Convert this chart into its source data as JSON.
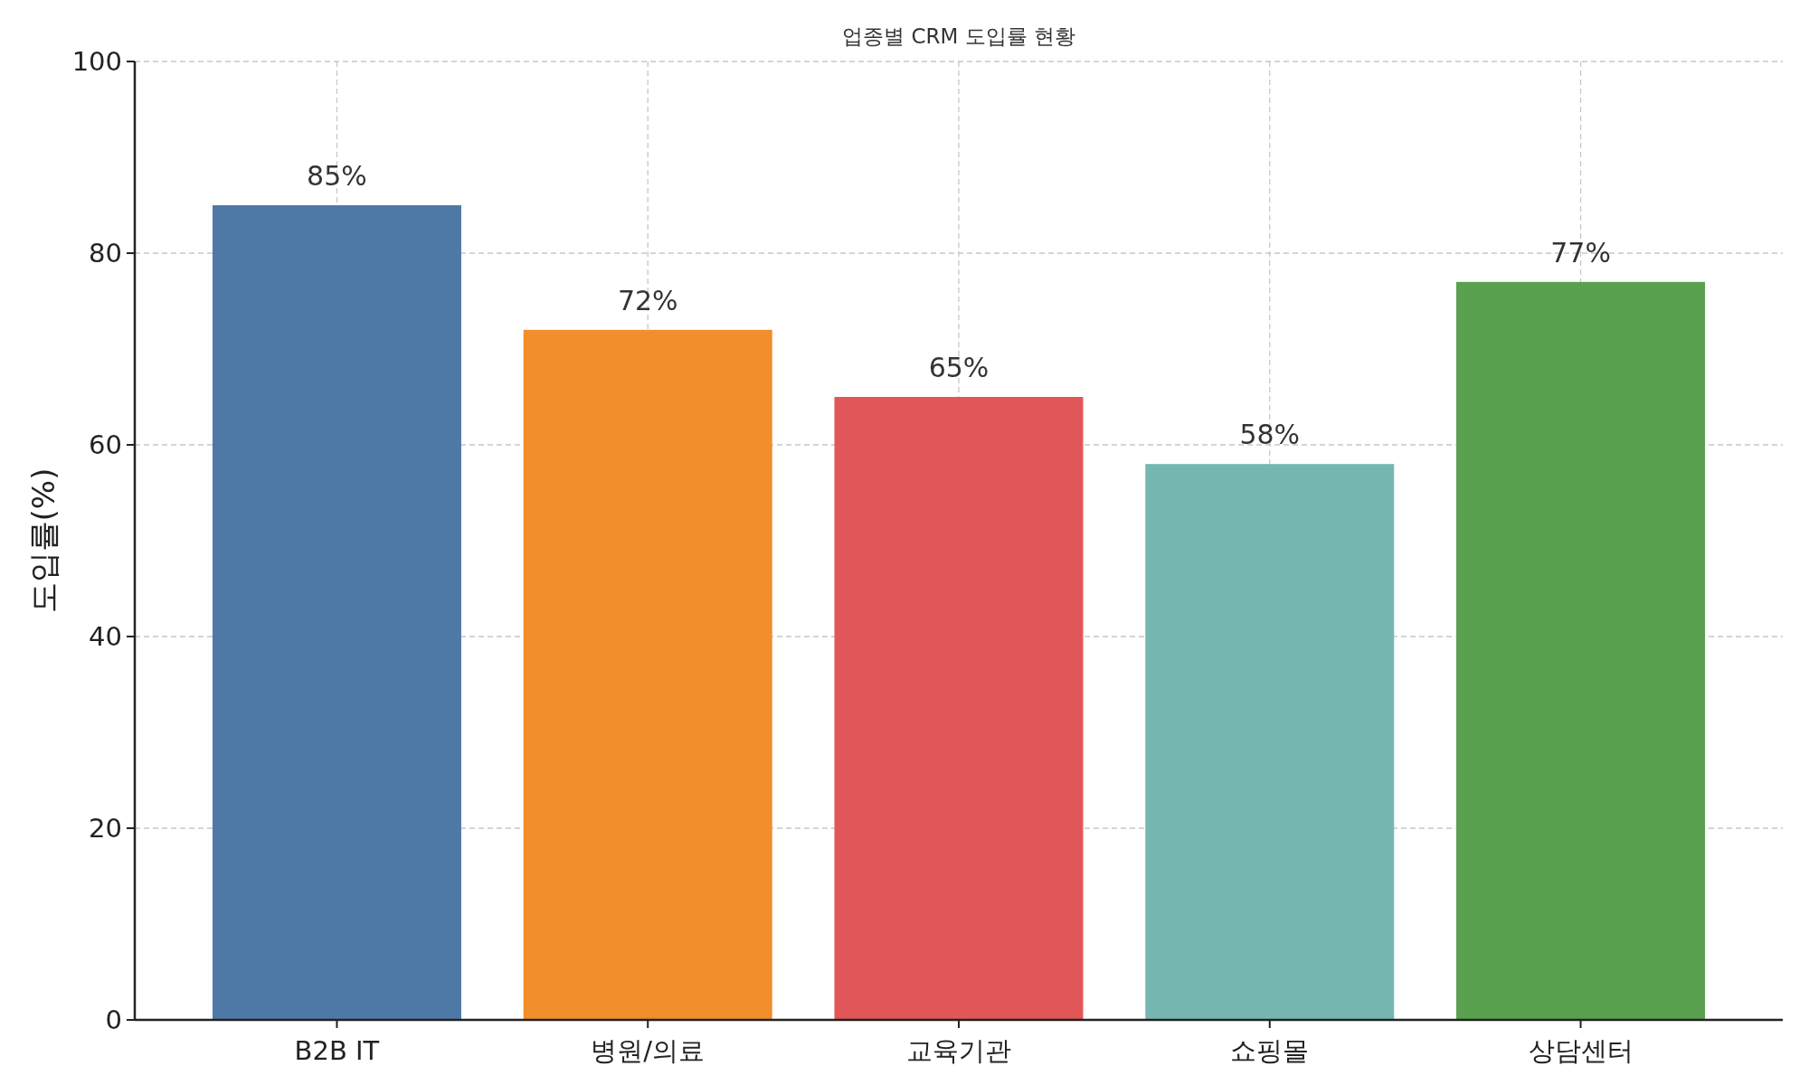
{
  "chart_data": {
    "type": "bar",
    "title": "업종별 CRM 도입률 현황",
    "ylabel": "도입률(%)",
    "categories": [
      "B2B IT",
      "병원/의료",
      "교육기관",
      "쇼핑몰",
      "상담센터"
    ],
    "values": [
      85,
      72,
      65,
      58,
      77
    ],
    "colors": [
      "#4e79a7",
      "#f28e2b",
      "#e15759",
      "#76b7b2",
      "#59a14f"
    ],
    "value_labels": [
      "85%",
      "72%",
      "65%",
      "58%",
      "77%"
    ],
    "ylim": [
      0,
      100
    ],
    "yticks": [
      0,
      20,
      40,
      60,
      80,
      100
    ],
    "grid": true
  }
}
